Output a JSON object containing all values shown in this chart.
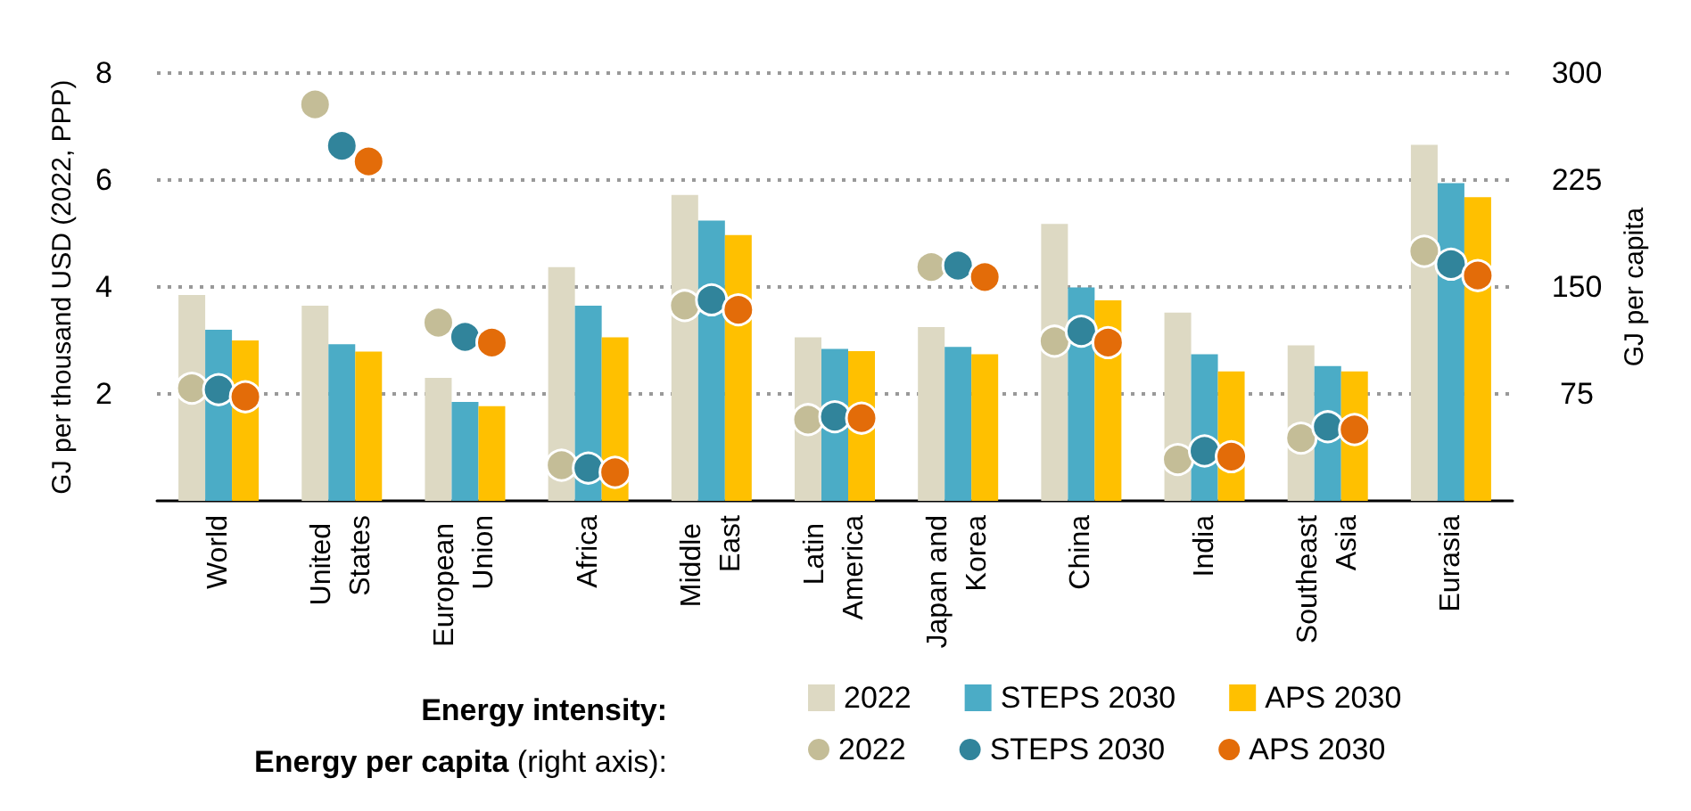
{
  "chart_data": {
    "type": "bar",
    "ylabel": "GJ per thousand USD (2022, PPP)",
    "y2label": "GJ per capita",
    "categories": [
      "World",
      "United States",
      "European Union",
      "Africa",
      "Middle East",
      "Latin America",
      "Japan and Korea",
      "China",
      "India",
      "Southeast Asia",
      "Eurasia"
    ],
    "series": [
      {
        "name": "2022",
        "color": "#ddd9c3",
        "values": [
          3.85,
          3.65,
          2.3,
          4.37,
          5.72,
          3.06,
          3.25,
          5.18,
          3.52,
          2.91,
          6.66
        ]
      },
      {
        "name": "STEPS 2030",
        "color": "#4bacc6",
        "values": [
          3.2,
          2.93,
          1.85,
          3.65,
          5.24,
          2.84,
          2.88,
          3.99,
          2.74,
          2.52,
          5.94
        ]
      },
      {
        "name": "APS 2030",
        "color": "#ffc000",
        "values": [
          3.0,
          2.79,
          1.77,
          3.06,
          4.97,
          2.8,
          2.74,
          3.75,
          2.42,
          2.42,
          5.68
        ]
      },
      {
        "name": "2022",
        "type": "scatter",
        "axis": "y2",
        "color": "#c4bd97",
        "values": [
          79,
          278,
          125,
          25,
          137,
          57,
          164,
          112,
          29,
          44,
          175
        ]
      },
      {
        "name": "STEPS 2030",
        "type": "scatter",
        "axis": "y2",
        "color": "#31849b",
        "values": [
          78,
          249,
          115,
          23,
          141,
          59,
          165,
          119,
          35,
          52,
          166
        ]
      },
      {
        "name": "APS 2030",
        "type": "scatter",
        "axis": "y2",
        "color": "#e36c09",
        "values": [
          73,
          238,
          111,
          20,
          134,
          58,
          157,
          111,
          31,
          50,
          158
        ]
      }
    ],
    "annotations": [
      "Energy intensity:",
      "Energy per capita (right axis):"
    ],
    "marker": "circle",
    "ylim": [
      0,
      8
    ],
    "yticks": [
      2,
      4,
      6,
      8
    ],
    "y2lim": [
      0,
      300
    ],
    "y2ticks": [
      75,
      150,
      225,
      300
    ],
    "grid": "y",
    "legend": "bottom"
  }
}
